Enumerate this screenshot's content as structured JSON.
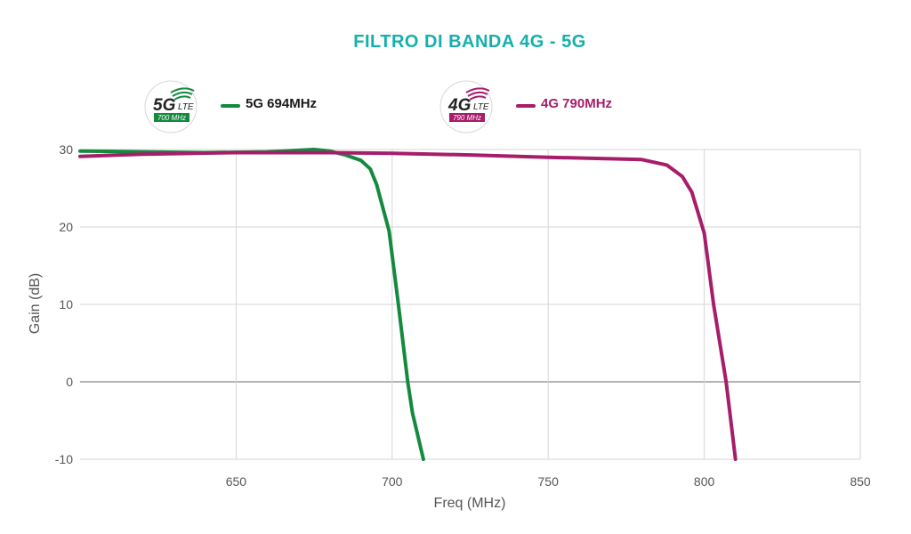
{
  "title": "FILTRO DI BANDA 4G - 5G",
  "legend": [
    {
      "label": "5G 694MHz",
      "color": "#138a3e",
      "badge_main": "5G",
      "badge_sub": "LTE",
      "badge_band": "700 MHz"
    },
    {
      "label": "4G 790MHz",
      "color": "#a61d6a",
      "badge_main": "4G",
      "badge_sub": "LTE",
      "badge_band": "790 MHz"
    }
  ],
  "chart_data": {
    "type": "line",
    "title": "FILTRO DI BANDA 4G - 5G",
    "xlabel": "Freq (MHz)",
    "ylabel": "Gain (dB)",
    "xlim": [
      600,
      850
    ],
    "ylim": [
      -10,
      30
    ],
    "x_ticks": [
      650,
      700,
      750,
      800,
      850
    ],
    "y_ticks": [
      30,
      20,
      10,
      0,
      -10
    ],
    "grid": true,
    "legend_position": "top",
    "series": [
      {
        "name": "5G 694MHz",
        "color": "#138a3e",
        "points": [
          [
            600,
            29.8
          ],
          [
            620,
            29.7
          ],
          [
            640,
            29.6
          ],
          [
            660,
            29.7
          ],
          [
            675,
            30.0
          ],
          [
            680,
            29.8
          ],
          [
            685,
            29.3
          ],
          [
            690,
            28.6
          ],
          [
            693,
            27.5
          ],
          [
            695,
            25.5
          ],
          [
            697,
            22.5
          ],
          [
            699,
            19.5
          ],
          [
            702,
            10
          ],
          [
            705,
            0
          ],
          [
            706.5,
            -4
          ],
          [
            710,
            -10
          ]
        ]
      },
      {
        "name": "4G 790MHz",
        "color": "#a61d6a",
        "points": [
          [
            600,
            29.1
          ],
          [
            620,
            29.4
          ],
          [
            650,
            29.6
          ],
          [
            680,
            29.6
          ],
          [
            700,
            29.5
          ],
          [
            725,
            29.3
          ],
          [
            750,
            29.0
          ],
          [
            780,
            28.7
          ],
          [
            788,
            28.0
          ],
          [
            793,
            26.5
          ],
          [
            796,
            24.5
          ],
          [
            800,
            19.2
          ],
          [
            803,
            10
          ],
          [
            807,
            0
          ],
          [
            810,
            -10
          ]
        ]
      }
    ]
  }
}
